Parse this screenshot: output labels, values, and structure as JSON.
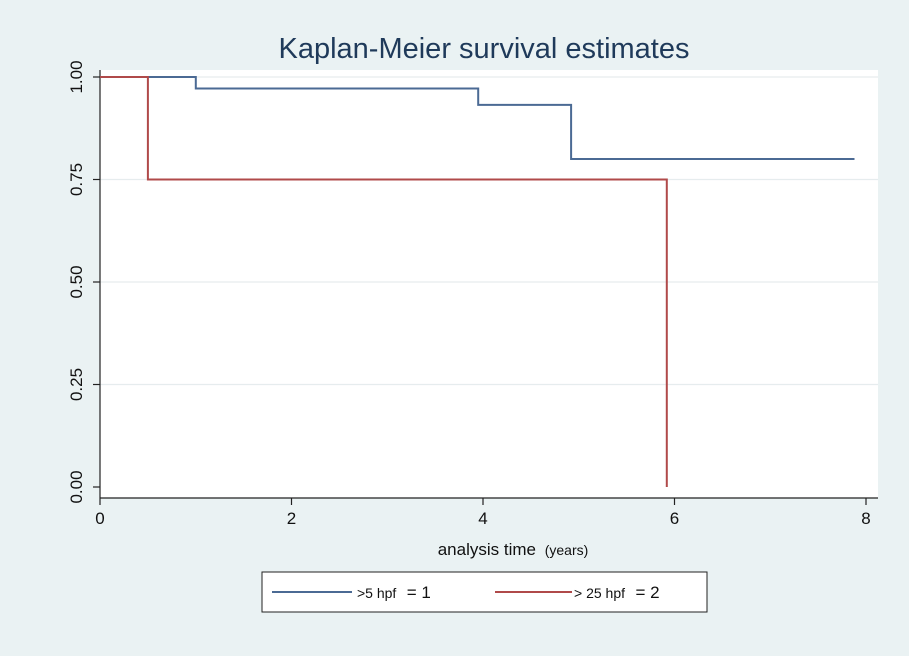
{
  "chart_data": {
    "type": "line",
    "title": "Kaplan-Meier survival estimates",
    "xlabel": "analysis time",
    "xlabel_unit": "(years)",
    "ylabel": "",
    "xlim": [
      0,
      8
    ],
    "ylim": [
      0,
      1
    ],
    "x_ticks": [
      0,
      2,
      4,
      6,
      8
    ],
    "x_tick_labels": [
      "0",
      "2",
      "4",
      "6",
      "8"
    ],
    "y_ticks": [
      0,
      0.25,
      0.5,
      0.75,
      1
    ],
    "y_tick_labels": [
      "0.00",
      "0.25",
      "0.50",
      "0.75",
      "1.00"
    ],
    "grid": "horizontal",
    "legend_position": "bottom",
    "series": [
      {
        "name": ">5 hpf",
        "legend_value": "= 1",
        "color": "#4b6a94",
        "step": true,
        "x": [
          0,
          1.0,
          1.0,
          3.95,
          3.95,
          4.92,
          4.92,
          7.88
        ],
        "y": [
          1.0,
          1.0,
          0.972,
          0.972,
          0.932,
          0.932,
          0.8,
          0.8
        ]
      },
      {
        "name": "> 25 hpf",
        "legend_value": "= 2",
        "color": "#b04a4a",
        "step": true,
        "x": [
          0,
          0.5,
          0.5,
          5.92,
          5.92
        ],
        "y": [
          1.0,
          1.0,
          0.75,
          0.75,
          0.0
        ]
      }
    ]
  }
}
